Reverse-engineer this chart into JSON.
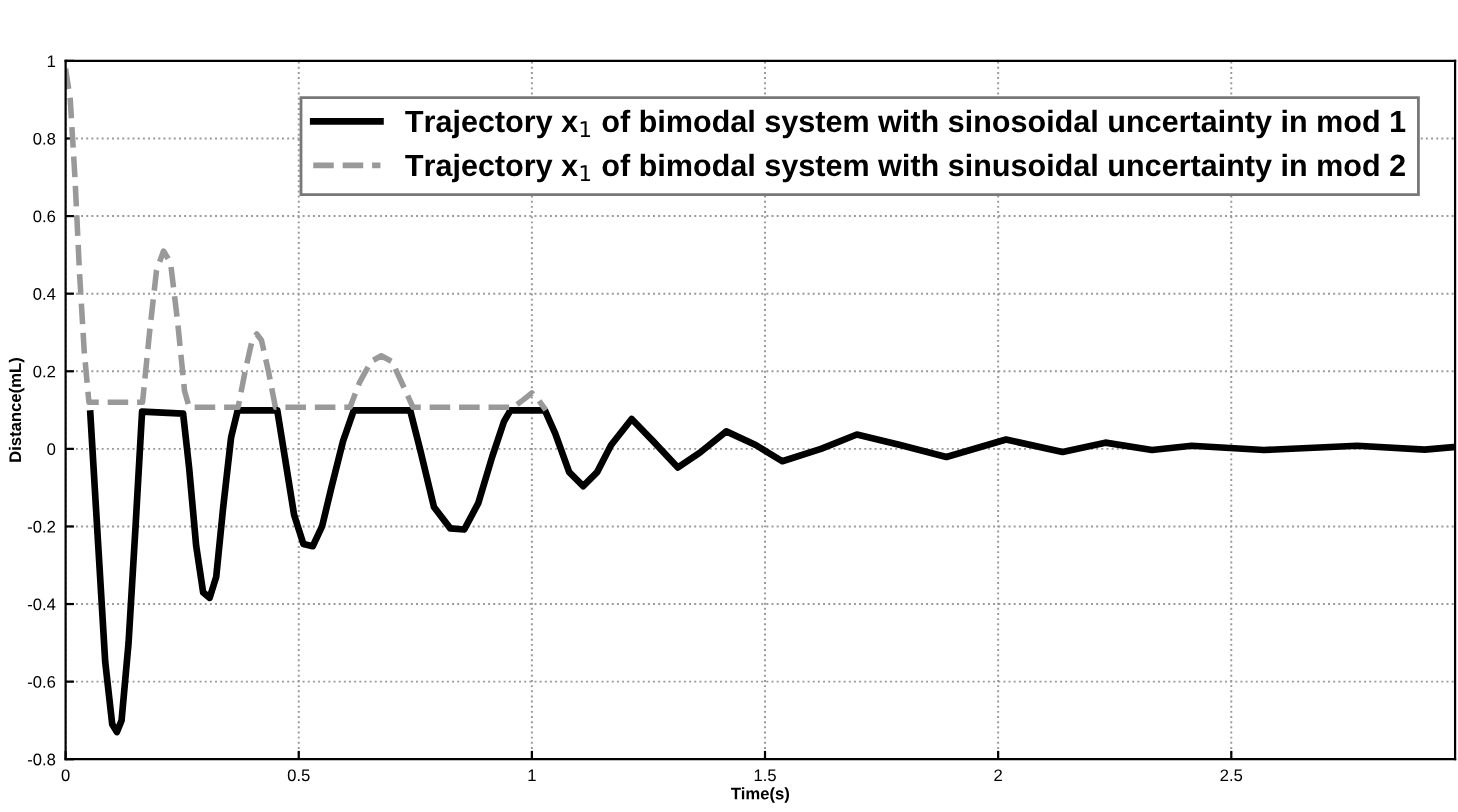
{
  "chart_data": {
    "type": "line",
    "xlabel": "Time(s)",
    "ylabel": "Distance(mL)",
    "xlim": [
      0,
      2.98
    ],
    "ylim": [
      -0.8,
      1
    ],
    "xticks": [
      0,
      0.5,
      1,
      1.5,
      2,
      2.5
    ],
    "yticks": [
      -0.8,
      -0.6,
      -0.4,
      -0.2,
      0,
      0.2,
      0.4,
      0.6,
      0.8,
      1
    ],
    "grid": true,
    "legend": "top right",
    "marker": "none",
    "series": [
      {
        "name": "Trajectory x$_{1}$ of bimodal system with sinosoidal uncertainty in mod 1",
        "color": "#000000",
        "line_style": "solid",
        "x": [
          0.053,
          0.07,
          0.085,
          0.1,
          0.11,
          0.12,
          0.135,
          0.15,
          0.164,
          0.252,
          0.265,
          0.28,
          0.295,
          0.309,
          0.323,
          0.338,
          0.355,
          0.369,
          0.454,
          0.47,
          0.49,
          0.51,
          0.53,
          0.55,
          0.57,
          0.595,
          0.618,
          0.739,
          0.76,
          0.79,
          0.825,
          0.855,
          0.885,
          0.915,
          0.94,
          0.954,
          1.028,
          1.05,
          1.08,
          1.11,
          1.14,
          1.17,
          1.214,
          1.26,
          1.313,
          1.36,
          1.417,
          1.48,
          1.537,
          1.62,
          1.697,
          1.79,
          1.889,
          2.017,
          2.138,
          2.23,
          2.33,
          2.415,
          2.57,
          2.77,
          2.915,
          2.98
        ],
        "values": [
          0.091,
          -0.25,
          -0.55,
          -0.71,
          -0.73,
          -0.7,
          -0.5,
          -0.2,
          0.096,
          0.091,
          -0.05,
          -0.25,
          -0.37,
          -0.384,
          -0.33,
          -0.15,
          0.03,
          0.099,
          0.099,
          -0.02,
          -0.17,
          -0.245,
          -0.251,
          -0.2,
          -0.1,
          0.02,
          0.099,
          0.099,
          0.0,
          -0.15,
          -0.205,
          -0.208,
          -0.14,
          -0.02,
          0.07,
          0.099,
          0.099,
          0.04,
          -0.06,
          -0.096,
          -0.06,
          0.01,
          0.077,
          0.02,
          -0.048,
          -0.01,
          0.045,
          0.01,
          -0.032,
          0.0,
          0.037,
          0.01,
          -0.021,
          0.024,
          -0.008,
          0.016,
          -0.003,
          0.008,
          -0.003,
          0.008,
          -0.002,
          0.005
        ]
      },
      {
        "name": "Trajectory x$_{1}$ of bimodal system with sinusoidal uncertainty in mod 2",
        "color": "#999999",
        "line_style": "dashed",
        "x": [
          0.0,
          0.01,
          0.02,
          0.03,
          0.04,
          0.05,
          0.165,
          0.18,
          0.195,
          0.21,
          0.225,
          0.24,
          0.255,
          0.265,
          0.37,
          0.385,
          0.4,
          0.41,
          0.42,
          0.435,
          0.45,
          0.61,
          0.63,
          0.655,
          0.677,
          0.7,
          0.725,
          0.745,
          0.96,
          0.98,
          1.0,
          1.015,
          1.03
        ],
        "values": [
          0.98,
          0.9,
          0.7,
          0.45,
          0.25,
          0.12,
          0.12,
          0.3,
          0.46,
          0.51,
          0.48,
          0.33,
          0.15,
          0.107,
          0.107,
          0.2,
          0.28,
          0.296,
          0.28,
          0.2,
          0.107,
          0.107,
          0.17,
          0.225,
          0.24,
          0.225,
          0.16,
          0.107,
          0.107,
          0.125,
          0.144,
          0.125,
          0.1
        ]
      }
    ]
  }
}
